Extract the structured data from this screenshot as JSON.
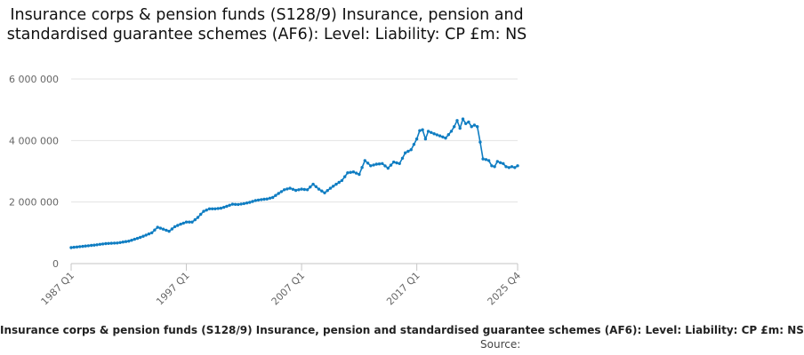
{
  "chart_data": {
    "type": "line",
    "title": "Insurance corps & pension funds (S128/9) Insurance, pension and standardised guarantee schemes (AF6): Level: Liability: CP £m: NS",
    "xlabel": "",
    "ylabel": "",
    "ylim": [
      0,
      6000000
    ],
    "y_ticks": [
      0,
      2000000,
      4000000,
      6000000
    ],
    "y_tick_labels": [
      "0",
      "2 000 000",
      "4 000 000",
      "6 000 000"
    ],
    "x_tick_labels": [
      "1987 Q1",
      "1997 Q1",
      "2007 Q1",
      "2017 Q1",
      "2025 Q4"
    ],
    "x_range": [
      "1987 Q1",
      "2025 Q4"
    ],
    "grid": "horizontal",
    "legend": "bottom",
    "color": "#0f7dc2",
    "series": [
      {
        "name": "Insurance corps & pension funds (S128/9) Insurance, pension and standardised guarantee schemes (AF6): Level: Liability: CP £m: NS",
        "points": [
          [
            "1987 Q1",
            520000
          ],
          [
            "1988 Q1",
            560000
          ],
          [
            "1989 Q1",
            600000
          ],
          [
            "1990 Q1",
            650000
          ],
          [
            "1991 Q1",
            670000
          ],
          [
            "1992 Q1",
            730000
          ],
          [
            "1993 Q1",
            850000
          ],
          [
            "1994 Q1",
            1000000
          ],
          [
            "1994 Q3",
            1180000
          ],
          [
            "1995 Q1",
            1120000
          ],
          [
            "1995 Q3",
            1050000
          ],
          [
            "1996 Q1",
            1200000
          ],
          [
            "1996 Q3",
            1280000
          ],
          [
            "1997 Q1",
            1350000
          ],
          [
            "1997 Q3",
            1350000
          ],
          [
            "1998 Q1",
            1500000
          ],
          [
            "1998 Q3",
            1700000
          ],
          [
            "1999 Q1",
            1780000
          ],
          [
            "1999 Q3",
            1780000
          ],
          [
            "2000 Q1",
            1800000
          ],
          [
            "2000 Q3",
            1860000
          ],
          [
            "2001 Q1",
            1930000
          ],
          [
            "2001 Q3",
            1920000
          ],
          [
            "2002 Q1",
            1950000
          ],
          [
            "2002 Q3",
            1990000
          ],
          [
            "2003 Q1",
            2050000
          ],
          [
            "2003 Q3",
            2080000
          ],
          [
            "2004 Q1",
            2100000
          ],
          [
            "2004 Q3",
            2150000
          ],
          [
            "2005 Q1",
            2280000
          ],
          [
            "2005 Q3",
            2400000
          ],
          [
            "2006 Q1",
            2450000
          ],
          [
            "2006 Q3",
            2380000
          ],
          [
            "2007 Q1",
            2420000
          ],
          [
            "2007 Q3",
            2400000
          ],
          [
            "2008 Q1",
            2580000
          ],
          [
            "2008 Q3",
            2420000
          ],
          [
            "2009 Q1",
            2300000
          ],
          [
            "2009 Q3",
            2450000
          ],
          [
            "2010 Q1",
            2580000
          ],
          [
            "2010 Q3",
            2700000
          ],
          [
            "2011 Q1",
            2950000
          ],
          [
            "2011 Q3",
            2980000
          ],
          [
            "2012 Q1",
            2900000
          ],
          [
            "2012 Q3",
            3350000
          ],
          [
            "2013 Q1",
            3180000
          ],
          [
            "2013 Q3",
            3230000
          ],
          [
            "2014 Q1",
            3250000
          ],
          [
            "2014 Q3",
            3100000
          ],
          [
            "2015 Q1",
            3300000
          ],
          [
            "2015 Q3",
            3250000
          ],
          [
            "2016 Q1",
            3600000
          ],
          [
            "2016 Q3",
            3700000
          ],
          [
            "2017 Q1",
            4050000
          ],
          [
            "2017 Q2",
            4320000
          ],
          [
            "2017 Q3",
            4350000
          ],
          [
            "2017 Q4",
            4050000
          ],
          [
            "2018 Q1",
            4300000
          ],
          [
            "2018 Q3",
            4220000
          ],
          [
            "2019 Q1",
            4150000
          ],
          [
            "2019 Q3",
            4080000
          ],
          [
            "2020 Q1",
            4300000
          ],
          [
            "2020 Q2",
            4450000
          ],
          [
            "2020 Q3",
            4650000
          ],
          [
            "2020 Q4",
            4400000
          ],
          [
            "2021 Q1",
            4700000
          ],
          [
            "2021 Q2",
            4550000
          ],
          [
            "2021 Q3",
            4600000
          ],
          [
            "2021 Q4",
            4450000
          ],
          [
            "2022 Q1",
            4500000
          ],
          [
            "2022 Q2",
            4450000
          ],
          [
            "2022 Q3",
            3950000
          ],
          [
            "2022 Q4",
            3400000
          ],
          [
            "2023 Q1",
            3380000
          ],
          [
            "2023 Q2",
            3350000
          ],
          [
            "2023 Q3",
            3180000
          ],
          [
            "2023 Q4",
            3150000
          ],
          [
            "2024 Q1",
            3320000
          ],
          [
            "2024 Q2",
            3280000
          ],
          [
            "2024 Q3",
            3250000
          ],
          [
            "2024 Q4",
            3150000
          ],
          [
            "2025 Q1",
            3120000
          ],
          [
            "2025 Q2",
            3150000
          ],
          [
            "2025 Q3",
            3120000
          ],
          [
            "2025 Q4",
            3180000
          ]
        ]
      }
    ],
    "source_label": "Source:"
  }
}
